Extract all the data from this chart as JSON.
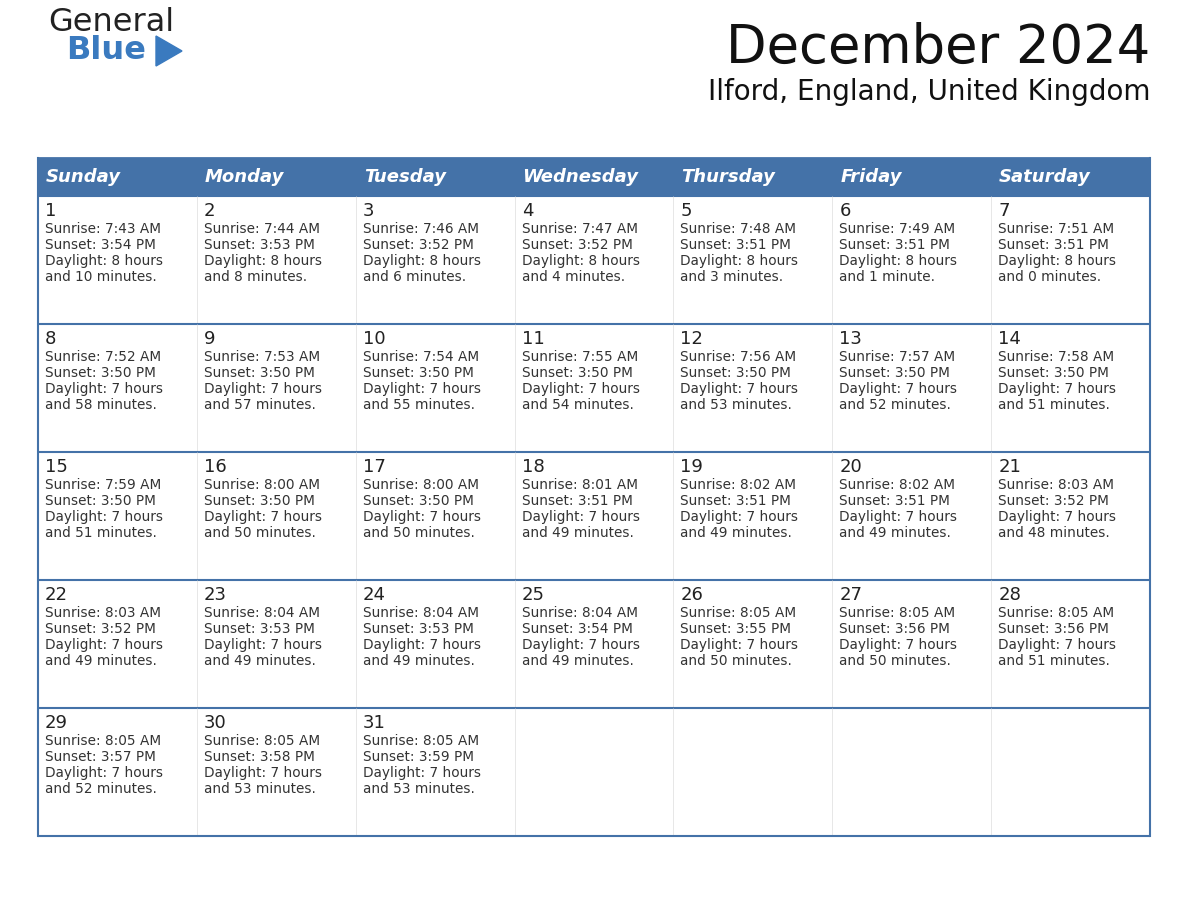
{
  "title": "December 2024",
  "subtitle": "Ilford, England, United Kingdom",
  "header_color": "#4472a8",
  "header_text_color": "#ffffff",
  "cell_bg_color": "#ffffff",
  "border_color": "#4472a8",
  "days_of_week": [
    "Sunday",
    "Monday",
    "Tuesday",
    "Wednesday",
    "Thursday",
    "Friday",
    "Saturday"
  ],
  "weeks": [
    [
      {
        "day": "1",
        "sunrise": "7:43 AM",
        "sunset": "3:54 PM",
        "daylight_line1": "Daylight: 8 hours",
        "daylight_line2": "and 10 minutes."
      },
      {
        "day": "2",
        "sunrise": "7:44 AM",
        "sunset": "3:53 PM",
        "daylight_line1": "Daylight: 8 hours",
        "daylight_line2": "and 8 minutes."
      },
      {
        "day": "3",
        "sunrise": "7:46 AM",
        "sunset": "3:52 PM",
        "daylight_line1": "Daylight: 8 hours",
        "daylight_line2": "and 6 minutes."
      },
      {
        "day": "4",
        "sunrise": "7:47 AM",
        "sunset": "3:52 PM",
        "daylight_line1": "Daylight: 8 hours",
        "daylight_line2": "and 4 minutes."
      },
      {
        "day": "5",
        "sunrise": "7:48 AM",
        "sunset": "3:51 PM",
        "daylight_line1": "Daylight: 8 hours",
        "daylight_line2": "and 3 minutes."
      },
      {
        "day": "6",
        "sunrise": "7:49 AM",
        "sunset": "3:51 PM",
        "daylight_line1": "Daylight: 8 hours",
        "daylight_line2": "and 1 minute."
      },
      {
        "day": "7",
        "sunrise": "7:51 AM",
        "sunset": "3:51 PM",
        "daylight_line1": "Daylight: 8 hours",
        "daylight_line2": "and 0 minutes."
      }
    ],
    [
      {
        "day": "8",
        "sunrise": "7:52 AM",
        "sunset": "3:50 PM",
        "daylight_line1": "Daylight: 7 hours",
        "daylight_line2": "and 58 minutes."
      },
      {
        "day": "9",
        "sunrise": "7:53 AM",
        "sunset": "3:50 PM",
        "daylight_line1": "Daylight: 7 hours",
        "daylight_line2": "and 57 minutes."
      },
      {
        "day": "10",
        "sunrise": "7:54 AM",
        "sunset": "3:50 PM",
        "daylight_line1": "Daylight: 7 hours",
        "daylight_line2": "and 55 minutes."
      },
      {
        "day": "11",
        "sunrise": "7:55 AM",
        "sunset": "3:50 PM",
        "daylight_line1": "Daylight: 7 hours",
        "daylight_line2": "and 54 minutes."
      },
      {
        "day": "12",
        "sunrise": "7:56 AM",
        "sunset": "3:50 PM",
        "daylight_line1": "Daylight: 7 hours",
        "daylight_line2": "and 53 minutes."
      },
      {
        "day": "13",
        "sunrise": "7:57 AM",
        "sunset": "3:50 PM",
        "daylight_line1": "Daylight: 7 hours",
        "daylight_line2": "and 52 minutes."
      },
      {
        "day": "14",
        "sunrise": "7:58 AM",
        "sunset": "3:50 PM",
        "daylight_line1": "Daylight: 7 hours",
        "daylight_line2": "and 51 minutes."
      }
    ],
    [
      {
        "day": "15",
        "sunrise": "7:59 AM",
        "sunset": "3:50 PM",
        "daylight_line1": "Daylight: 7 hours",
        "daylight_line2": "and 51 minutes."
      },
      {
        "day": "16",
        "sunrise": "8:00 AM",
        "sunset": "3:50 PM",
        "daylight_line1": "Daylight: 7 hours",
        "daylight_line2": "and 50 minutes."
      },
      {
        "day": "17",
        "sunrise": "8:00 AM",
        "sunset": "3:50 PM",
        "daylight_line1": "Daylight: 7 hours",
        "daylight_line2": "and 50 minutes."
      },
      {
        "day": "18",
        "sunrise": "8:01 AM",
        "sunset": "3:51 PM",
        "daylight_line1": "Daylight: 7 hours",
        "daylight_line2": "and 49 minutes."
      },
      {
        "day": "19",
        "sunrise": "8:02 AM",
        "sunset": "3:51 PM",
        "daylight_line1": "Daylight: 7 hours",
        "daylight_line2": "and 49 minutes."
      },
      {
        "day": "20",
        "sunrise": "8:02 AM",
        "sunset": "3:51 PM",
        "daylight_line1": "Daylight: 7 hours",
        "daylight_line2": "and 49 minutes."
      },
      {
        "day": "21",
        "sunrise": "8:03 AM",
        "sunset": "3:52 PM",
        "daylight_line1": "Daylight: 7 hours",
        "daylight_line2": "and 48 minutes."
      }
    ],
    [
      {
        "day": "22",
        "sunrise": "8:03 AM",
        "sunset": "3:52 PM",
        "daylight_line1": "Daylight: 7 hours",
        "daylight_line2": "and 49 minutes."
      },
      {
        "day": "23",
        "sunrise": "8:04 AM",
        "sunset": "3:53 PM",
        "daylight_line1": "Daylight: 7 hours",
        "daylight_line2": "and 49 minutes."
      },
      {
        "day": "24",
        "sunrise": "8:04 AM",
        "sunset": "3:53 PM",
        "daylight_line1": "Daylight: 7 hours",
        "daylight_line2": "and 49 minutes."
      },
      {
        "day": "25",
        "sunrise": "8:04 AM",
        "sunset": "3:54 PM",
        "daylight_line1": "Daylight: 7 hours",
        "daylight_line2": "and 49 minutes."
      },
      {
        "day": "26",
        "sunrise": "8:05 AM",
        "sunset": "3:55 PM",
        "daylight_line1": "Daylight: 7 hours",
        "daylight_line2": "and 50 minutes."
      },
      {
        "day": "27",
        "sunrise": "8:05 AM",
        "sunset": "3:56 PM",
        "daylight_line1": "Daylight: 7 hours",
        "daylight_line2": "and 50 minutes."
      },
      {
        "day": "28",
        "sunrise": "8:05 AM",
        "sunset": "3:56 PM",
        "daylight_line1": "Daylight: 7 hours",
        "daylight_line2": "and 51 minutes."
      }
    ],
    [
      {
        "day": "29",
        "sunrise": "8:05 AM",
        "sunset": "3:57 PM",
        "daylight_line1": "Daylight: 7 hours",
        "daylight_line2": "and 52 minutes."
      },
      {
        "day": "30",
        "sunrise": "8:05 AM",
        "sunset": "3:58 PM",
        "daylight_line1": "Daylight: 7 hours",
        "daylight_line2": "and 53 minutes."
      },
      {
        "day": "31",
        "sunrise": "8:05 AM",
        "sunset": "3:59 PM",
        "daylight_line1": "Daylight: 7 hours",
        "daylight_line2": "and 53 minutes."
      },
      null,
      null,
      null,
      null
    ]
  ],
  "logo_triangle_color": "#3a7abf",
  "logo_blue_color": "#3a7abf"
}
